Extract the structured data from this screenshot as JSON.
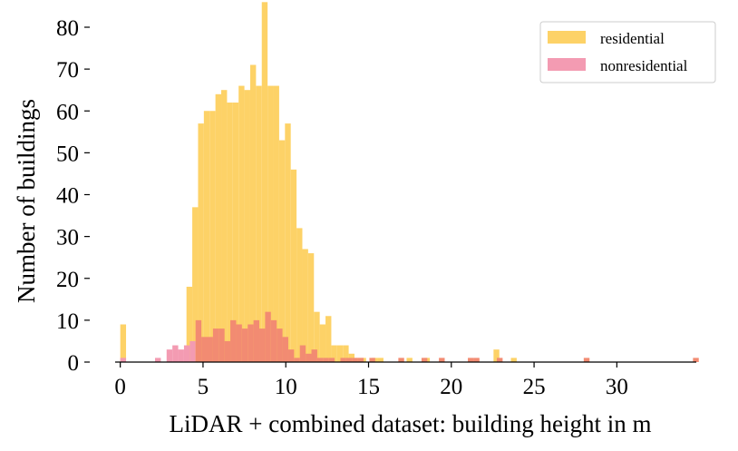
{
  "chart_data": {
    "type": "bar",
    "subtype": "histogram",
    "title": "",
    "xlabel": "LiDAR + combined dataset: building height in m",
    "ylabel": "Number of buildings",
    "xlim": [
      -0.2,
      34.8
    ],
    "ylim": [
      0,
      80
    ],
    "xticks": [
      0,
      5,
      10,
      15,
      20,
      25,
      30
    ],
    "yticks": [
      0,
      10,
      20,
      30,
      40,
      50,
      60,
      70,
      80
    ],
    "bin_width": 0.35,
    "grid": false,
    "legend_position": "top-right",
    "series": [
      {
        "name": "residential",
        "color": "#fdd267",
        "bins": [
          [
            0.0,
            9
          ],
          [
            4.0,
            18
          ],
          [
            4.35,
            37
          ],
          [
            4.7,
            57
          ],
          [
            5.05,
            60
          ],
          [
            5.4,
            60
          ],
          [
            5.75,
            64
          ],
          [
            6.1,
            65
          ],
          [
            6.45,
            62
          ],
          [
            6.8,
            62
          ],
          [
            7.15,
            66
          ],
          [
            7.5,
            65
          ],
          [
            7.85,
            71
          ],
          [
            8.2,
            66
          ],
          [
            8.55,
            86
          ],
          [
            8.9,
            66
          ],
          [
            9.25,
            66
          ],
          [
            9.6,
            53
          ],
          [
            9.95,
            57
          ],
          [
            10.3,
            46
          ],
          [
            10.65,
            32
          ],
          [
            11.0,
            27
          ],
          [
            11.35,
            26
          ],
          [
            11.7,
            12
          ],
          [
            12.05,
            9
          ],
          [
            12.4,
            11
          ],
          [
            12.75,
            4
          ],
          [
            13.1,
            4
          ],
          [
            13.45,
            4
          ],
          [
            13.8,
            2
          ],
          [
            14.15,
            1
          ],
          [
            14.5,
            1
          ],
          [
            15.2,
            1
          ],
          [
            15.55,
            1
          ],
          [
            17.3,
            1
          ],
          [
            18.35,
            1
          ],
          [
            22.55,
            3
          ],
          [
            23.6,
            1
          ]
        ]
      },
      {
        "name": "nonresidential",
        "color": "#f39bb2",
        "bins": [
          [
            0.0,
            1
          ],
          [
            2.1,
            1
          ],
          [
            2.8,
            3
          ],
          [
            3.15,
            4
          ],
          [
            3.5,
            3
          ],
          [
            3.85,
            4
          ],
          [
            4.2,
            5
          ]
        ]
      },
      {
        "name": "",
        "color": "#f28b72",
        "bins": [
          [
            4.55,
            10
          ],
          [
            4.9,
            6
          ],
          [
            5.25,
            6
          ],
          [
            5.6,
            8
          ],
          [
            5.95,
            8
          ],
          [
            6.3,
            5
          ],
          [
            6.65,
            10
          ],
          [
            7.0,
            9
          ],
          [
            7.35,
            8
          ],
          [
            7.7,
            9
          ],
          [
            8.05,
            10
          ],
          [
            8.4,
            8
          ],
          [
            8.75,
            12
          ],
          [
            9.1,
            10
          ],
          [
            9.45,
            8
          ],
          [
            9.8,
            6
          ],
          [
            10.15,
            3
          ],
          [
            10.5,
            1
          ],
          [
            10.85,
            4
          ],
          [
            11.2,
            2
          ],
          [
            11.55,
            3
          ],
          [
            11.9,
            1
          ],
          [
            12.25,
            1
          ],
          [
            12.6,
            1
          ],
          [
            13.3,
            1
          ],
          [
            13.65,
            1
          ],
          [
            14.0,
            1
          ],
          [
            14.35,
            1
          ],
          [
            15.05,
            1
          ],
          [
            16.8,
            1
          ],
          [
            18.2,
            1
          ],
          [
            19.25,
            1
          ],
          [
            21.0,
            1
          ],
          [
            21.35,
            1
          ],
          [
            22.75,
            1
          ],
          [
            28.0,
            1
          ],
          [
            34.6,
            1
          ]
        ]
      }
    ],
    "legend": [
      "residential",
      "nonresidential"
    ]
  }
}
